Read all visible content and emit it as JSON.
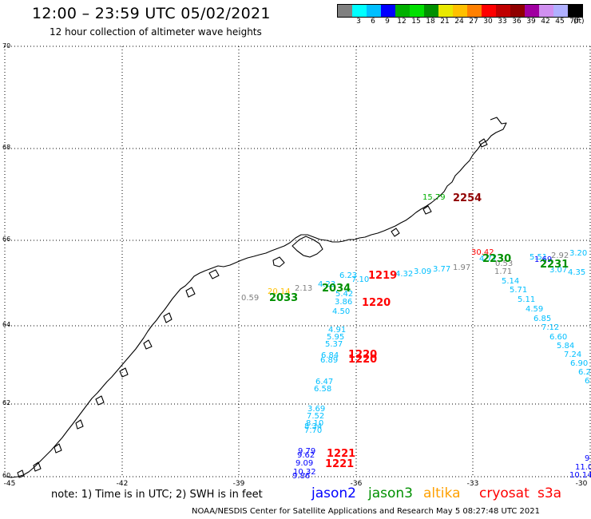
{
  "header": {
    "title": "12:00 – 23:59 UTC 05/02/2021",
    "subtitle": "12 hour collection of altimeter wave heights"
  },
  "legend": {
    "colors": [
      "#808080",
      "#00ffff",
      "#00bfff",
      "#0000ff",
      "#00b000",
      "#00e000",
      "#009000",
      "#e8e800",
      "#ffc000",
      "#ff8000",
      "#ff0000",
      "#c00000",
      "#900000",
      "#a000a0",
      "#d090f0",
      "#b0b0ff",
      "#000000"
    ],
    "labels": [
      "3",
      "6",
      "9",
      "12",
      "15",
      "18",
      "21",
      "24",
      "27",
      "30",
      "33",
      "36",
      "39",
      "42",
      "45",
      "70"
    ],
    "unit": "(ft)"
  },
  "axes": {
    "lat_labels": [
      "70",
      "68",
      "66",
      "64",
      "62",
      "60"
    ],
    "lon_labels": [
      "-45",
      "-42",
      "-39",
      "-36",
      "-33",
      "-30"
    ]
  },
  "observations": [
    {
      "text": "15.79",
      "color": "#00b000"
    },
    {
      "text": "30.42",
      "color": "#ff0000"
    },
    {
      "text": "4.77",
      "color": "#00bfff"
    },
    {
      "text": "0.53",
      "color": "#808080"
    },
    {
      "text": "5.51",
      "color": "#00bfff"
    },
    {
      "text": "2.92",
      "color": "#808080"
    },
    {
      "text": "3.20",
      "color": "#00bfff"
    },
    {
      "text": "1.69",
      "color": "#0000ff"
    },
    {
      "text": "3.07",
      "color": "#00bfff"
    },
    {
      "text": "4.35",
      "color": "#00bfff"
    },
    {
      "text": "1.71",
      "color": "#808080"
    },
    {
      "text": "1.97",
      "color": "#808080"
    },
    {
      "text": "3.77",
      "color": "#00bfff"
    },
    {
      "text": "3.09",
      "color": "#00bfff"
    },
    {
      "text": "4.32",
      "color": "#00bfff"
    },
    {
      "text": "5.14",
      "color": "#00bfff"
    },
    {
      "text": "5.71",
      "color": "#00bfff"
    },
    {
      "text": "5.11",
      "color": "#00bfff"
    },
    {
      "text": "4.59",
      "color": "#00bfff"
    },
    {
      "text": "6.85",
      "color": "#00bfff"
    },
    {
      "text": "7.12",
      "color": "#00bfff"
    },
    {
      "text": "6.60",
      "color": "#00bfff"
    },
    {
      "text": "5.84",
      "color": "#00bfff"
    },
    {
      "text": "7.24",
      "color": "#00bfff"
    },
    {
      "text": "6.90",
      "color": "#00bfff"
    },
    {
      "text": "6.2",
      "color": "#00bfff"
    },
    {
      "text": "6",
      "color": "#00bfff"
    },
    {
      "text": "0.59",
      "color": "#808080"
    },
    {
      "text": "20.14",
      "color": "#ffc000"
    },
    {
      "text": "2.13",
      "color": "#808080"
    },
    {
      "text": "4.23",
      "color": "#00bfff"
    },
    {
      "text": "6.23",
      "color": "#00bfff"
    },
    {
      "text": "7.10",
      "color": "#00bfff"
    },
    {
      "text": "5.42",
      "color": "#00bfff"
    },
    {
      "text": "3.86",
      "color": "#00bfff"
    },
    {
      "text": "4.50",
      "color": "#00bfff"
    },
    {
      "text": "4.91",
      "color": "#00bfff"
    },
    {
      "text": "5.95",
      "color": "#00bfff"
    },
    {
      "text": "5.37",
      "color": "#00bfff"
    },
    {
      "text": "6.84",
      "color": "#00bfff"
    },
    {
      "text": "6.89",
      "color": "#00bfff"
    },
    {
      "text": "6.47",
      "color": "#00bfff"
    },
    {
      "text": "6.58",
      "color": "#00bfff"
    },
    {
      "text": "3.69",
      "color": "#00bfff"
    },
    {
      "text": "7.52",
      "color": "#00bfff"
    },
    {
      "text": "8.10",
      "color": "#00bfff"
    },
    {
      "text": "8.34",
      "color": "#00bfff"
    },
    {
      "text": "7.70",
      "color": "#00bfff"
    },
    {
      "text": "9.79",
      "color": "#0000ff"
    },
    {
      "text": "9.62",
      "color": "#0000ff"
    },
    {
      "text": "9.09",
      "color": "#0000ff"
    },
    {
      "text": "10.32",
      "color": "#0000ff"
    },
    {
      "text": "9.86",
      "color": "#0000ff"
    },
    {
      "text": "9",
      "color": "#0000ff"
    },
    {
      "text": "11.0",
      "color": "#0000ff"
    },
    {
      "text": "10.14",
      "color": "#0000ff"
    }
  ],
  "pass_times": [
    {
      "text": "2254",
      "color": "#900000"
    },
    {
      "text": "2230",
      "color": "#009000"
    },
    {
      "text": "2231",
      "color": "#009000"
    },
    {
      "text": "1219",
      "color": "#ff0000"
    },
    {
      "text": "2034",
      "color": "#009000"
    },
    {
      "text": "2033",
      "color": "#009000"
    },
    {
      "text": "1220",
      "color": "#ff0000"
    },
    {
      "text": "1220",
      "color": "#ff0000"
    },
    {
      "text": "1220",
      "color": "#ff0000"
    },
    {
      "text": "1221",
      "color": "#ff0000"
    },
    {
      "text": "1221",
      "color": "#ff0000"
    }
  ],
  "footer": {
    "note": "note:  1) Time is in UTC;  2) SWH is in feet",
    "satellites": [
      {
        "text": "jason2",
        "color": "#0000ff"
      },
      {
        "text": "jason3",
        "color": "#009000"
      },
      {
        "text": "altika",
        "color": "#ffa000"
      },
      {
        "text": "cryosat",
        "color": "#ff0000"
      },
      {
        "text": "s3a",
        "color": "#ff0000"
      }
    ],
    "credit": "NOAA/NESDIS Center for Satellite Applications and Research     May  5 08:27:48 UTC 2021"
  }
}
